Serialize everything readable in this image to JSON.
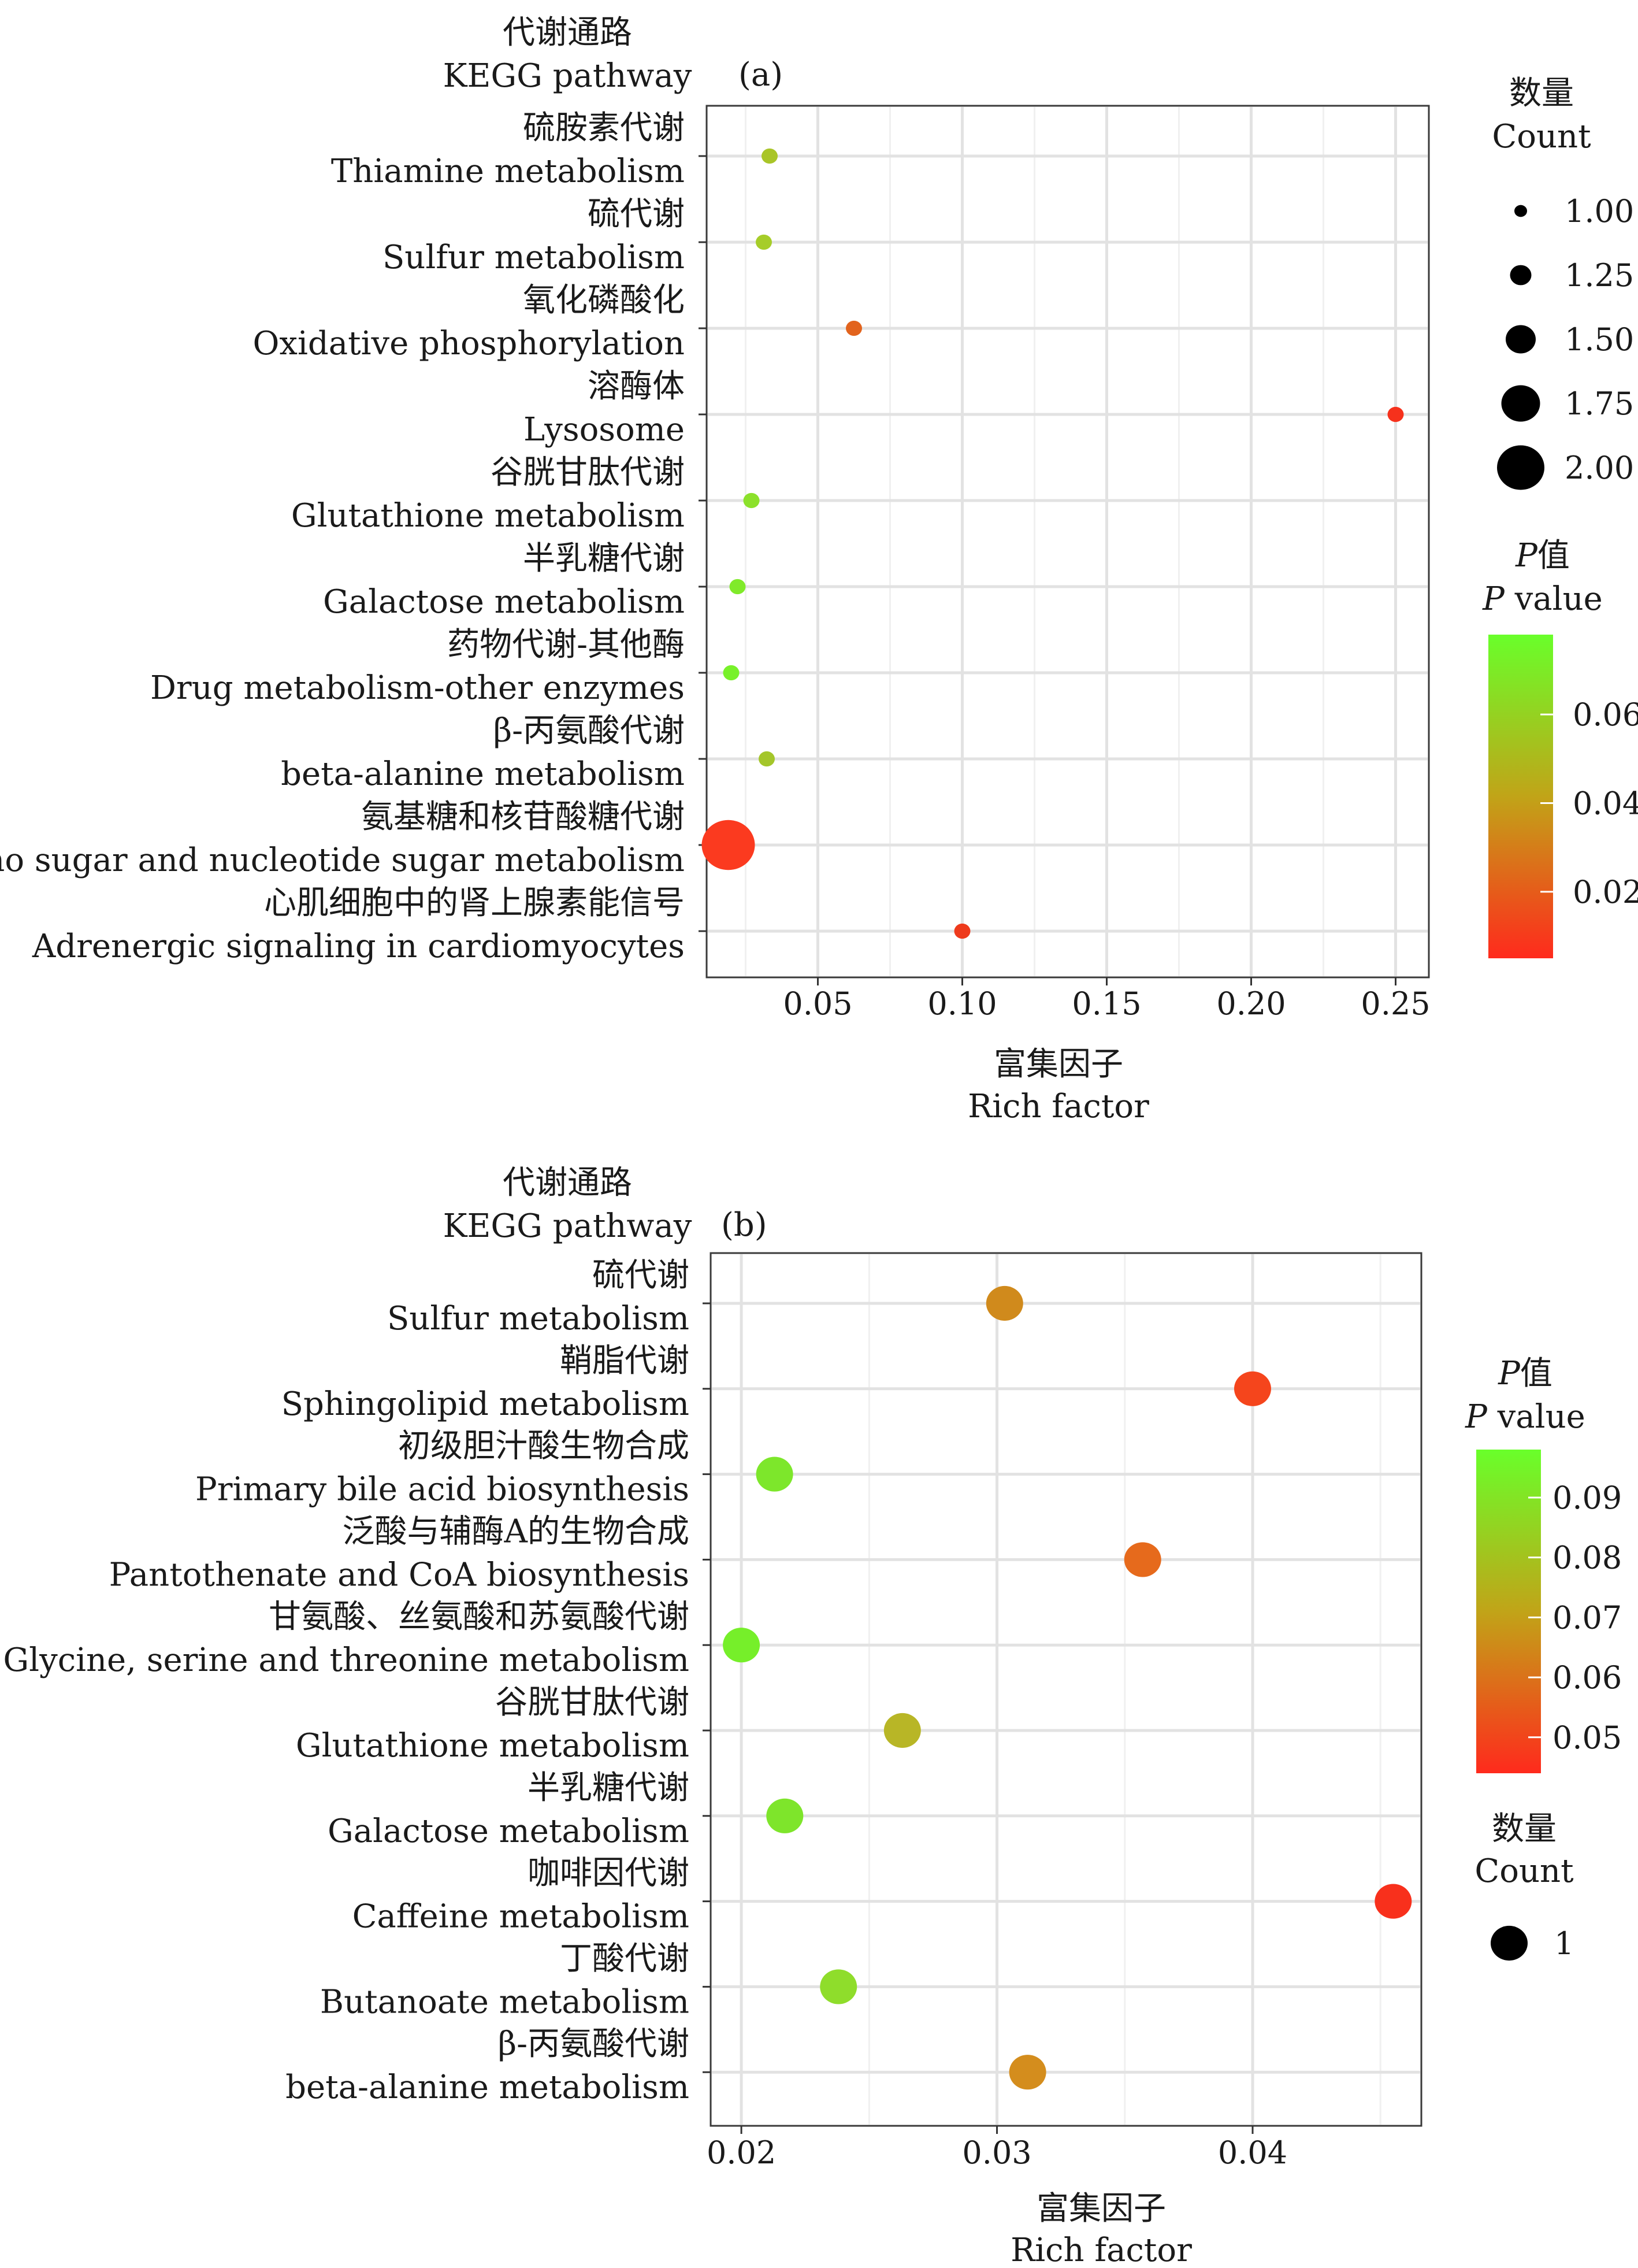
{
  "chart_data": [
    {
      "panel_label": "(a)",
      "type": "scatter",
      "y_title_cn": "代谢通路",
      "y_title_en": "KEGG pathway",
      "x_title_cn": "富集因子",
      "x_title_en": "Rich factor",
      "xlim": [
        0.0115,
        0.2615
      ],
      "x_ticks": [
        0.05,
        0.1,
        0.15,
        0.2,
        0.25
      ],
      "x_tick_labels": [
        "0.05",
        "0.10",
        "0.15",
        "0.20",
        "0.25"
      ],
      "grid": true,
      "points": [
        {
          "label_cn": "硫胺素代谢",
          "label_en": "Thiamine metabolism",
          "x": 0.0333,
          "count": 1,
          "p": 0.045,
          "color": "#a9c528"
        },
        {
          "label_cn": "硫代谢",
          "label_en": "Sulfur metabolism",
          "x": 0.0313,
          "count": 1,
          "p": 0.05,
          "color": "#a6cd29"
        },
        {
          "label_cn": "氧化磷酸化",
          "label_en": "Oxidative phosphorylation",
          "x": 0.0625,
          "count": 1,
          "p": 0.02,
          "color": "#e2631d"
        },
        {
          "label_cn": "溶酶体",
          "label_en": "Lysosome",
          "x": 0.25,
          "count": 1,
          "p": 0.006,
          "color": "#f6311c"
        },
        {
          "label_cn": "谷胱甘肽代谢",
          "label_en": "Glutathione metabolism",
          "x": 0.027,
          "count": 1,
          "p": 0.062,
          "color": "#8ce12b"
        },
        {
          "label_cn": "半乳糖代谢",
          "label_en": "Galactose metabolism",
          "x": 0.0222,
          "count": 1,
          "p": 0.07,
          "color": "#80ea2a"
        },
        {
          "label_cn": "药物代谢-其他酶",
          "label_en": "Drug metabolism-other enzymes",
          "x": 0.02,
          "count": 1,
          "p": 0.074,
          "color": "#78f12a"
        },
        {
          "label_cn": "β-丙氨酸代谢",
          "label_en": "beta-alanine metabolism",
          "x": 0.0323,
          "count": 1,
          "p": 0.048,
          "color": "#a4c62a"
        },
        {
          "label_cn": "氨基糖和核苷酸糖代谢",
          "label_en": "Amino sugar and nucleotide sugar metabolism",
          "x": 0.019,
          "count": 2,
          "p": 0.005,
          "color": "#fb3a1f"
        },
        {
          "label_cn": "心肌细胞中的肾上腺素能信号",
          "label_en": "Adrenergic signaling in cardiomyocytes",
          "x": 0.1,
          "count": 1,
          "p": 0.01,
          "color": "#ee3a1c"
        }
      ],
      "size_legend": {
        "title_cn": "数量",
        "title_en": "Count",
        "values": [
          1.0,
          1.25,
          1.5,
          1.75,
          2.0
        ],
        "labels": [
          "1.00",
          "1.25",
          "1.50",
          "1.75",
          "2.00"
        ]
      },
      "color_legend": {
        "title_italic": "P",
        "title_cn_suffix": "值",
        "title_en_italic": "P",
        "title_en_suffix": " value",
        "range": [
          0.005,
          0.078
        ],
        "ticks": [
          0.06,
          0.04,
          0.02
        ],
        "tick_labels": [
          "0.06",
          "0.04",
          "0.02"
        ],
        "low_color": "#ff2a1c",
        "mid_color": "#c1a418",
        "high_color": "#69ff2a"
      }
    },
    {
      "panel_label": "(b)",
      "type": "scatter",
      "y_title_cn": "代谢通路",
      "y_title_en": "KEGG pathway",
      "x_title_cn": "富集因子",
      "x_title_en": "Rich factor",
      "xlim": [
        0.0188,
        0.0466
      ],
      "x_ticks": [
        0.02,
        0.03,
        0.04
      ],
      "x_tick_labels": [
        "0.02",
        "0.03",
        "0.04"
      ],
      "grid": true,
      "points": [
        {
          "label_cn": "硫代谢",
          "label_en": "Sulfur metabolism",
          "x": 0.0303,
          "count": 1,
          "p": 0.067,
          "color": "#d08a1c"
        },
        {
          "label_cn": "鞘脂代谢",
          "label_en": "Sphingolipid metabolism",
          "x": 0.04,
          "count": 1,
          "p": 0.05,
          "color": "#f5451c"
        },
        {
          "label_cn": "初级胆汁酸生物合成",
          "label_en": "Primary bile acid biosynthesis",
          "x": 0.0213,
          "count": 1,
          "p": 0.089,
          "color": "#7de72b"
        },
        {
          "label_cn": "泛酸与辅酶A的生物合成",
          "label_en": "Pantothenate and CoA biosynthesis",
          "x": 0.0357,
          "count": 1,
          "p": 0.057,
          "color": "#e66a1c"
        },
        {
          "label_cn": "甘氨酸、丝氨酸和苏氨酸代谢",
          "label_en": "Glycine, serine and threonine metabolism",
          "x": 0.02,
          "count": 1,
          "p": 0.092,
          "color": "#76ef2a"
        },
        {
          "label_cn": "谷胱甘肽代谢",
          "label_en": "Glutathione metabolism",
          "x": 0.0263,
          "count": 1,
          "p": 0.075,
          "color": "#b8b626"
        },
        {
          "label_cn": "半乳糖代谢",
          "label_en": "Galactose metabolism",
          "x": 0.0217,
          "count": 1,
          "p": 0.088,
          "color": "#7ee52b"
        },
        {
          "label_cn": "咖啡因代谢",
          "label_en": "Caffeine metabolism",
          "x": 0.0455,
          "count": 1,
          "p": 0.045,
          "color": "#f8301c"
        },
        {
          "label_cn": "丁酸代谢",
          "label_en": "Butanoate metabolism",
          "x": 0.0238,
          "count": 1,
          "p": 0.082,
          "color": "#8fdd2b"
        },
        {
          "label_cn": "β-丙氨酸代谢",
          "label_en": "beta-alanine metabolism",
          "x": 0.0312,
          "count": 1,
          "p": 0.065,
          "color": "#d48d1d"
        }
      ],
      "size_legend": {
        "title_cn": "数量",
        "title_en": "Count",
        "values": [
          1
        ],
        "labels": [
          "1"
        ]
      },
      "color_legend": {
        "title_italic": "P",
        "title_cn_suffix": "值",
        "title_en_italic": "P",
        "title_en_suffix": " value",
        "range": [
          0.044,
          0.098
        ],
        "ticks": [
          0.09,
          0.08,
          0.07,
          0.06,
          0.05
        ],
        "tick_labels": [
          "0.09",
          "0.08",
          "0.07",
          "0.06",
          "0.05"
        ],
        "low_color": "#ff2a1c",
        "mid_color": "#c1a418",
        "high_color": "#69ff2a"
      }
    }
  ]
}
